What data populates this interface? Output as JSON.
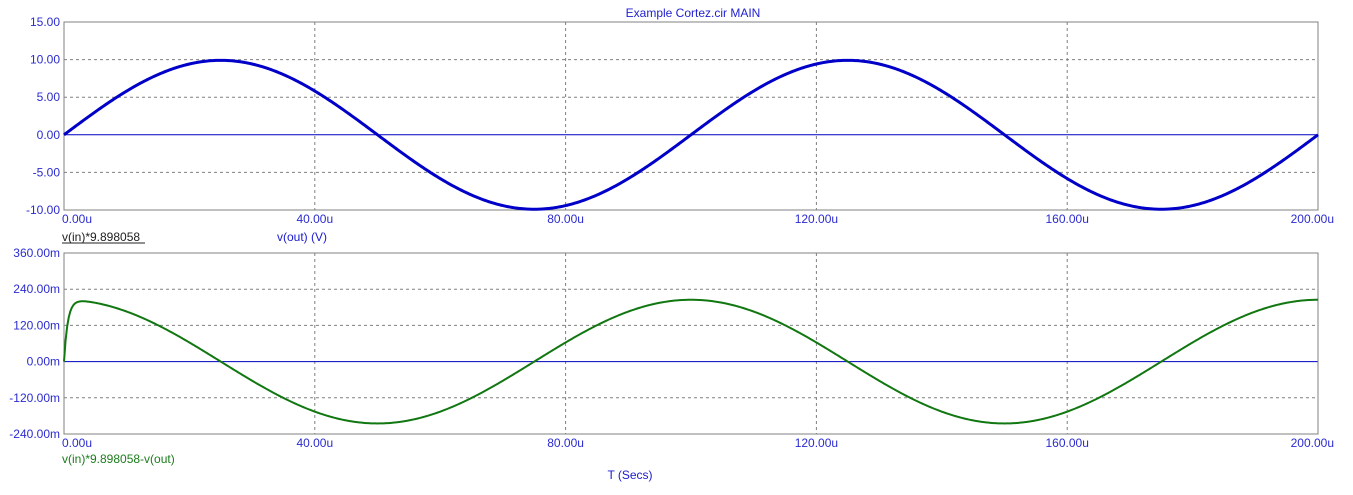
{
  "title": "Example Cortez.cir MAIN",
  "xlabel": "T (Secs)",
  "colors": {
    "axis_text": "#2b2bd0",
    "trace_blue": "#0000c8",
    "trace_green": "#117711",
    "zero_line": "#0000c0",
    "grid": "#808080"
  },
  "chart_data": [
    {
      "type": "line",
      "xlim": [
        0,
        200
      ],
      "x_unit": "u",
      "ylim": [
        -10,
        15
      ],
      "x_ticks": [
        "0.00u",
        "40.00u",
        "80.00u",
        "120.00u",
        "160.00u",
        "200.00u"
      ],
      "y_ticks": [
        "15.00",
        "10.00",
        "5.00",
        "0.00",
        "-5.00",
        "-10.00"
      ],
      "grid": true,
      "series": [
        {
          "name": "v(in)*9.898058",
          "function": "sine",
          "amplitude": 9.9,
          "period": 100,
          "phase_deg": 0,
          "color": "#0000c8"
        },
        {
          "name": "v(out) (V)",
          "function": "sine",
          "amplitude": 9.9,
          "period": 100,
          "phase_deg": 0,
          "color": "#0000c8"
        }
      ],
      "legend": [
        {
          "label": "v(in)*9.898058",
          "underline": true
        },
        {
          "label": "v(out) (V)",
          "underline": false
        }
      ]
    },
    {
      "type": "line",
      "xlim": [
        0,
        200
      ],
      "x_unit": "u",
      "ylim": [
        -240,
        360
      ],
      "y_unit": "m",
      "x_ticks": [
        "0.00u",
        "40.00u",
        "80.00u",
        "120.00u",
        "160.00u",
        "200.00u"
      ],
      "y_ticks": [
        "360.00m",
        "240.00m",
        "120.00m",
        "0.00m",
        "-120.00m",
        "-240.00m"
      ],
      "grid": true,
      "series": [
        {
          "name": "v(in)*9.898058-v(out)",
          "function": "cosine",
          "amplitude": 205,
          "period": 100,
          "initial_value": 0,
          "color": "#117711"
        }
      ],
      "legend": [
        {
          "label": "v(in)*9.898058-v(out)",
          "underline": false
        }
      ]
    }
  ]
}
